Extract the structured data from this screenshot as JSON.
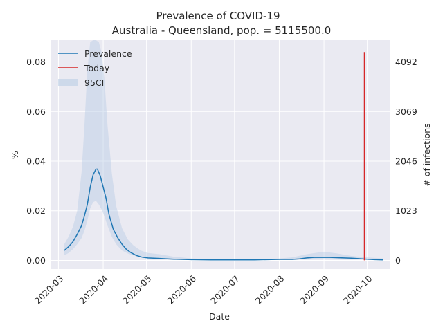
{
  "chart_data": {
    "type": "line",
    "title": "Prevalence of COVID-19",
    "subtitle": "Australia - Queensland, pop. = 5115500.0",
    "xlabel": "Date",
    "ylabel": "%",
    "y2label": "# of infections",
    "xlim": [
      "2020-02-25",
      "2020-10-17"
    ],
    "ylim": [
      -0.0035,
      0.0888
    ],
    "xticks": [
      "2020-03",
      "2020-04",
      "2020-05",
      "2020-06",
      "2020-07",
      "2020-08",
      "2020-09",
      "2020-10"
    ],
    "yticks": [
      "0.00",
      "0.02",
      "0.04",
      "0.06",
      "0.08"
    ],
    "y2ticks": [
      "0",
      "1023",
      "2046",
      "3069",
      "4092"
    ],
    "grid": true,
    "legend_position": "top-left",
    "legend": [
      "Prevalence",
      "Today",
      "95CI"
    ],
    "colors": {
      "prevalence": "#1f77b4",
      "today": "#d62728",
      "ci": "#b9cde5",
      "background": "#eaeaf2"
    },
    "series": [
      {
        "name": "Prevalence",
        "x": [
          "2020-03-05",
          "2020-03-08",
          "2020-03-11",
          "2020-03-14",
          "2020-03-17",
          "2020-03-19",
          "2020-03-21",
          "2020-03-23",
          "2020-03-25",
          "2020-03-27",
          "2020-03-28",
          "2020-03-30",
          "2020-04-01",
          "2020-04-03",
          "2020-04-05",
          "2020-04-08",
          "2020-04-11",
          "2020-04-14",
          "2020-04-17",
          "2020-04-20",
          "2020-04-24",
          "2020-04-28",
          "2020-05-02",
          "2020-05-10",
          "2020-05-20",
          "2020-06-01",
          "2020-06-15",
          "2020-07-01",
          "2020-07-15",
          "2020-08-01",
          "2020-08-10",
          "2020-08-15",
          "2020-08-20",
          "2020-08-25",
          "2020-09-01",
          "2020-09-05",
          "2020-09-10",
          "2020-09-15",
          "2020-09-20",
          "2020-09-25",
          "2020-10-01",
          "2020-10-06",
          "2020-10-12"
        ],
        "y": [
          0.004,
          0.0055,
          0.0075,
          0.0105,
          0.014,
          0.018,
          0.0225,
          0.0295,
          0.0345,
          0.0368,
          0.0368,
          0.034,
          0.0295,
          0.025,
          0.0185,
          0.0125,
          0.0092,
          0.0065,
          0.0045,
          0.0032,
          0.002,
          0.0013,
          0.001,
          0.0008,
          0.0005,
          0.0003,
          0.0002,
          0.0002,
          0.0002,
          0.0004,
          0.0004,
          0.0006,
          0.001,
          0.0012,
          0.0012,
          0.0012,
          0.0011,
          0.001,
          0.0009,
          0.0007,
          0.0005,
          0.0003,
          0.0002
        ]
      },
      {
        "name": "Today",
        "x": [
          "2020-09-29",
          "2020-09-29"
        ],
        "y": [
          0.0,
          0.084
        ]
      },
      {
        "name": "95CI",
        "x": [
          "2020-03-05",
          "2020-03-08",
          "2020-03-11",
          "2020-03-14",
          "2020-03-17",
          "2020-03-19",
          "2020-03-21",
          "2020-03-23",
          "2020-03-25",
          "2020-03-27",
          "2020-03-29",
          "2020-03-31",
          "2020-04-02",
          "2020-04-04",
          "2020-04-07",
          "2020-04-10",
          "2020-04-14",
          "2020-04-18",
          "2020-04-22",
          "2020-04-27",
          "2020-05-02",
          "2020-05-10",
          "2020-05-20",
          "2020-06-01",
          "2020-06-15",
          "2020-07-01",
          "2020-07-15",
          "2020-08-01",
          "2020-08-10",
          "2020-08-20",
          "2020-09-01",
          "2020-09-10",
          "2020-09-20",
          "2020-10-01",
          "2020-10-12"
        ],
        "lower": [
          0.002,
          0.003,
          0.0045,
          0.0065,
          0.009,
          0.012,
          0.016,
          0.021,
          0.0235,
          0.024,
          0.0225,
          0.0205,
          0.0175,
          0.014,
          0.0095,
          0.0065,
          0.004,
          0.0028,
          0.002,
          0.0012,
          0.0008,
          0.0005,
          0.0003,
          0.0002,
          0.0001,
          0.0001,
          0.0001,
          0.0002,
          0.0003,
          0.0006,
          0.0008,
          0.0007,
          0.0005,
          0.0003,
          0.0001
        ],
        "upper": [
          0.0065,
          0.0095,
          0.0135,
          0.02,
          0.0355,
          0.0545,
          0.0765,
          0.088,
          0.0888,
          0.0888,
          0.088,
          0.0835,
          0.072,
          0.0545,
          0.035,
          0.022,
          0.013,
          0.0085,
          0.006,
          0.004,
          0.003,
          0.0025,
          0.0015,
          0.0008,
          0.0005,
          0.0004,
          0.0004,
          0.0008,
          0.0012,
          0.0025,
          0.0035,
          0.0028,
          0.0018,
          0.0012,
          0.0008
        ]
      }
    ]
  }
}
